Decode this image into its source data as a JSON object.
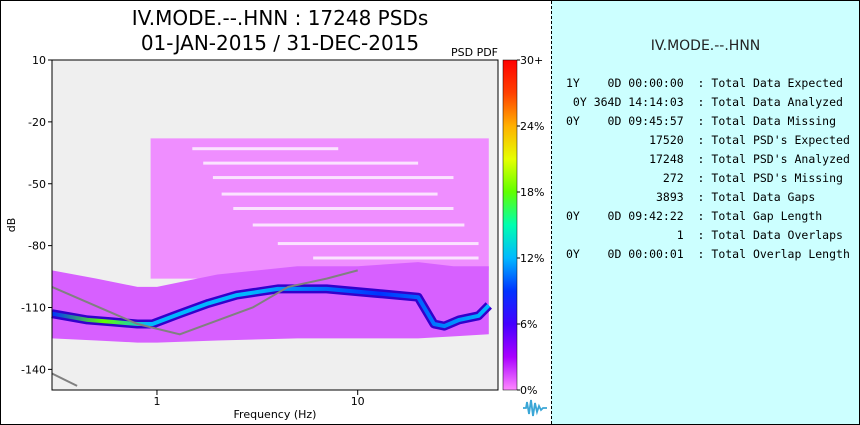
{
  "title_line1": "IV.MODE.--.HNN : 17248 PSDs",
  "title_line2": "01-JAN-2015 / 31-DEC-2015",
  "chart_data": {
    "type": "heatmap",
    "subtype": "psd-pdf",
    "corner_label": "PSD PDF",
    "xlabel": "Frequency (Hz)",
    "ylabel": "dB",
    "x_scale": "log",
    "xlim": [
      0.3,
      50
    ],
    "ylim": [
      -150,
      10
    ],
    "x_ticks": [
      {
        "value": 1,
        "label": "1"
      },
      {
        "value": 10,
        "label": "10"
      }
    ],
    "y_ticks": [
      {
        "value": 10,
        "label": "10"
      },
      {
        "value": -20,
        "label": "-20"
      },
      {
        "value": -50,
        "label": "-50"
      },
      {
        "value": -80,
        "label": "-80"
      },
      {
        "value": -110,
        "label": "-110"
      },
      {
        "value": -140,
        "label": "-140"
      }
    ],
    "colorbar": {
      "min_percent": 0,
      "max_percent": 30,
      "ticks": [
        {
          "value": 30,
          "label": "30+"
        },
        {
          "value": 24,
          "label": "24%"
        },
        {
          "value": 18,
          "label": "18%"
        },
        {
          "value": 12,
          "label": "12%"
        },
        {
          "value": 6,
          "label": "6%"
        },
        {
          "value": 0,
          "label": "0%"
        }
      ],
      "colors": [
        "#ff88ff",
        "#aa00ff",
        "#4400ff",
        "#0033ff",
        "#00b8ff",
        "#00ffb0",
        "#60ff00",
        "#e6ff00",
        "#ffb000",
        "#ff4000",
        "#ff0000"
      ]
    },
    "pdf_bands": [
      {
        "name": "upper-cloud",
        "x": [
          0.93,
          1.5,
          3,
          8,
          20,
          30,
          45
        ],
        "y_top": [
          -28,
          -28,
          -28,
          -28,
          -28,
          -28,
          -28
        ],
        "y_bottom": [
          -96,
          -96,
          -96,
          -96,
          -96,
          -95,
          -92
        ]
      },
      {
        "name": "lower-cloud",
        "x": [
          0.3,
          0.5,
          0.8,
          1,
          2,
          5,
          10,
          20,
          30,
          45
        ],
        "y_top": [
          -92,
          -96,
          -100,
          -100,
          -94,
          -90,
          -90,
          -88,
          -90,
          -90
        ],
        "y_bottom": [
          -125,
          -126,
          -127,
          -127,
          -126,
          -125,
          -125,
          -125,
          -124,
          -123
        ]
      },
      {
        "name": "mode-line",
        "x": [
          0.3,
          0.45,
          0.6,
          0.8,
          0.95,
          1.3,
          1.8,
          2.5,
          4,
          7,
          12,
          20,
          24,
          27,
          32,
          40,
          45
        ],
        "y": [
          -113,
          -116,
          -117,
          -118,
          -118,
          -113,
          -108,
          -104,
          -101,
          -101,
          -103,
          -105,
          -118,
          -119,
          -116,
          -114,
          -109
        ]
      }
    ],
    "noise_models": [
      {
        "name": "NHNM",
        "x": [
          0.3,
          0.8,
          1.3,
          3,
          4.5,
          7,
          10
        ],
        "y": [
          -100,
          -118,
          -123,
          -110,
          -100,
          -96,
          -92
        ]
      },
      {
        "name": "NLNM",
        "x": [
          0.3,
          0.4
        ],
        "y": [
          -142,
          -148
        ]
      }
    ]
  },
  "stats": {
    "network_label": "IV.MODE.--.HNN",
    "rows": [
      {
        "value": "1Y    0D 00:00:00",
        "label": "Total Data Expected"
      },
      {
        "value": "0Y 364D 14:14:03",
        "label": "Total Data Analyzed"
      },
      {
        "value": "0Y    0D 09:45:57",
        "label": "Total Data Missing"
      },
      {
        "value": "           17520",
        "label": "Total PSD's Expected"
      },
      {
        "value": "           17248",
        "label": "Total PSD's Analyzed"
      },
      {
        "value": "             272",
        "label": "Total PSD's Missing"
      },
      {
        "value": "            3893",
        "label": "Total Data Gaps"
      },
      {
        "value": "0Y    0D 09:42:22",
        "label": "Total Gap Length"
      },
      {
        "value": "               1",
        "label": "Total Data Overlaps"
      },
      {
        "value": "0Y    0D 00:00:01",
        "label": "Total Overlap Length"
      }
    ]
  },
  "logo_icon": "waveform-logo-icon"
}
